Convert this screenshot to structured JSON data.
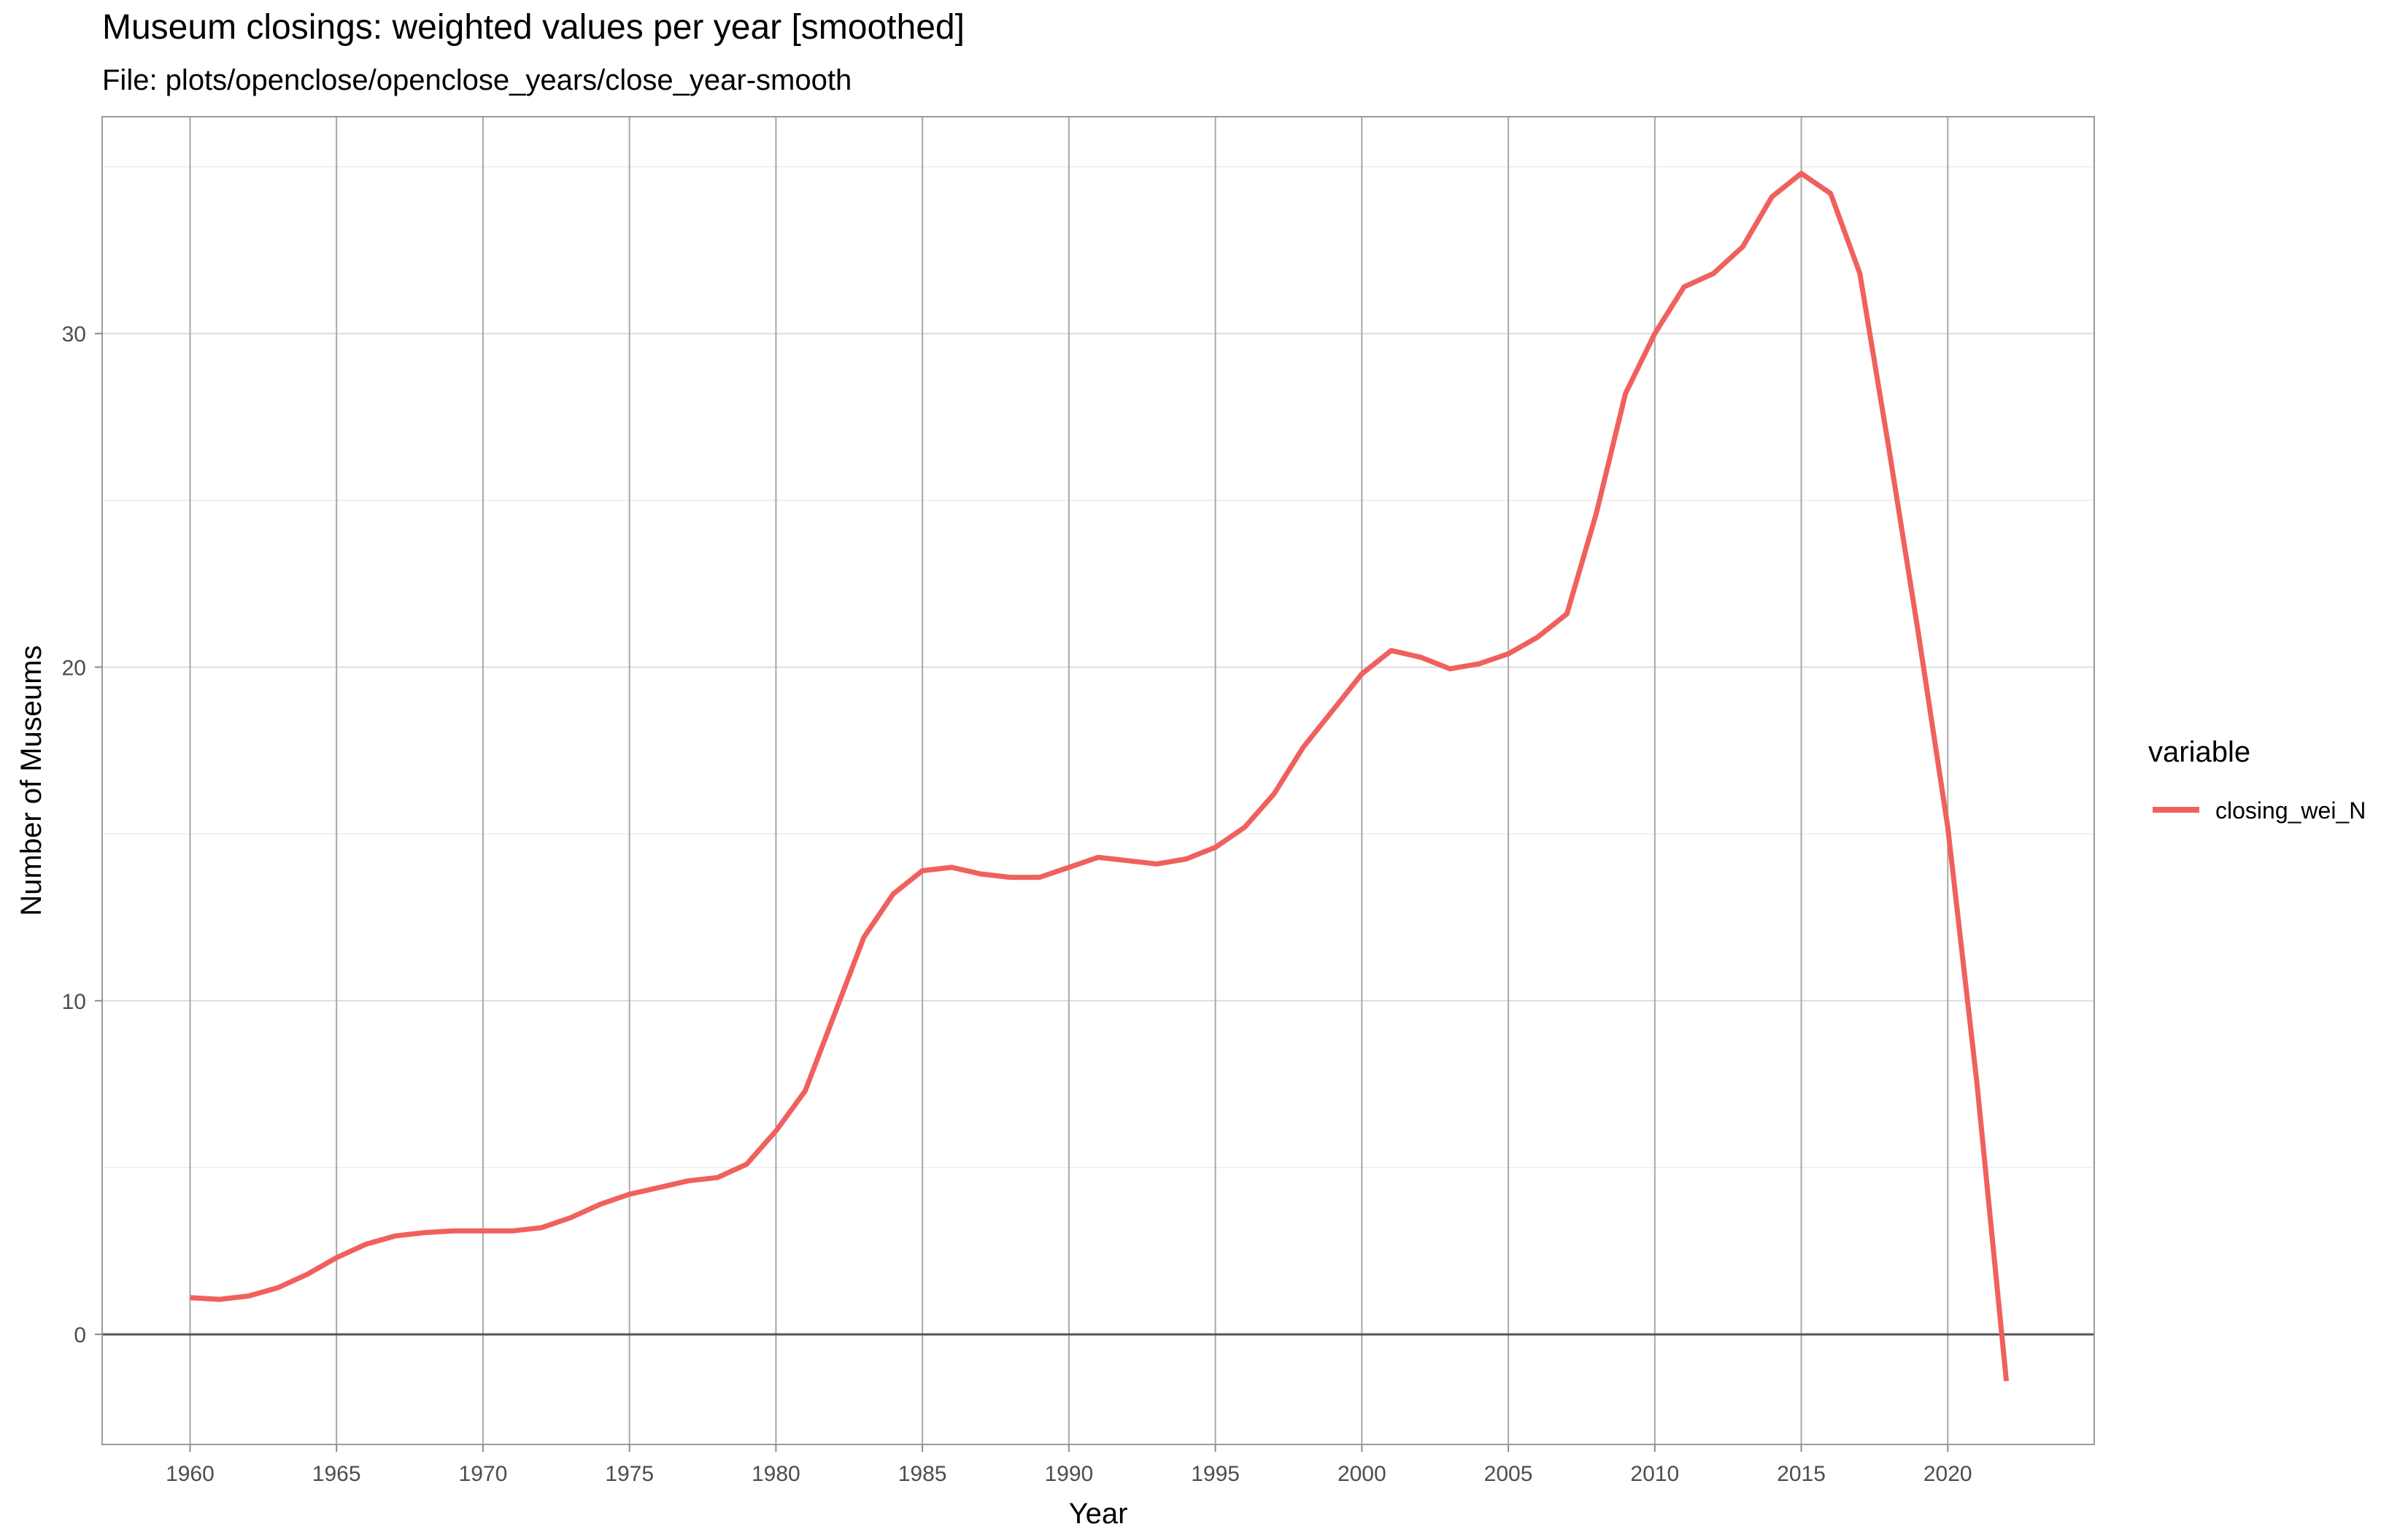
{
  "chart_data": {
    "type": "line",
    "title": "Museum closings: weighted values per year [smoothed]",
    "subtitle": "File: plots/openclose/openclose_years/close_year-smooth",
    "xlabel": "Year",
    "ylabel": "Number of Museums",
    "xlim": [
      1957,
      2025
    ],
    "ylim": [
      -3.3,
      36.5
    ],
    "x_ticks": [
      1960,
      1965,
      1970,
      1975,
      1980,
      1985,
      1990,
      1995,
      2000,
      2005,
      2010,
      2015,
      2020
    ],
    "y_ticks": [
      0,
      10,
      20,
      30
    ],
    "grid": true,
    "legend": {
      "title": "variable",
      "position": "right"
    },
    "series": [
      {
        "name": "closing_wei_N",
        "color": "#F0605D",
        "x": [
          1960,
          1961,
          1962,
          1963,
          1964,
          1965,
          1966,
          1967,
          1968,
          1969,
          1970,
          1971,
          1972,
          1973,
          1974,
          1975,
          1976,
          1977,
          1978,
          1979,
          1980,
          1981,
          1982,
          1983,
          1984,
          1985,
          1986,
          1987,
          1988,
          1989,
          1990,
          1991,
          1992,
          1993,
          1994,
          1995,
          1996,
          1997,
          1998,
          1999,
          2000,
          2001,
          2002,
          2003,
          2004,
          2005,
          2006,
          2007,
          2008,
          2009,
          2010,
          2011,
          2012,
          2013,
          2014,
          2015,
          2016,
          2017,
          2018,
          2019,
          2020,
          2021,
          2022
        ],
        "values": [
          1.1,
          1.05,
          1.15,
          1.4,
          1.8,
          2.3,
          2.7,
          2.95,
          3.05,
          3.1,
          3.1,
          3.1,
          3.2,
          3.5,
          3.9,
          4.2,
          4.4,
          4.6,
          4.7,
          5.1,
          6.1,
          7.3,
          9.6,
          11.9,
          13.2,
          13.9,
          14.0,
          13.8,
          13.7,
          13.7,
          14.0,
          14.3,
          14.2,
          14.1,
          14.25,
          14.6,
          15.2,
          16.2,
          17.6,
          18.7,
          19.8,
          20.5,
          20.3,
          19.95,
          20.1,
          20.4,
          20.9,
          21.6,
          24.6,
          28.2,
          30.0,
          31.4,
          31.8,
          32.6,
          34.1,
          34.8,
          34.2,
          31.8,
          26.5,
          21.0,
          15.2,
          7.5,
          -1.4
        ]
      }
    ]
  }
}
